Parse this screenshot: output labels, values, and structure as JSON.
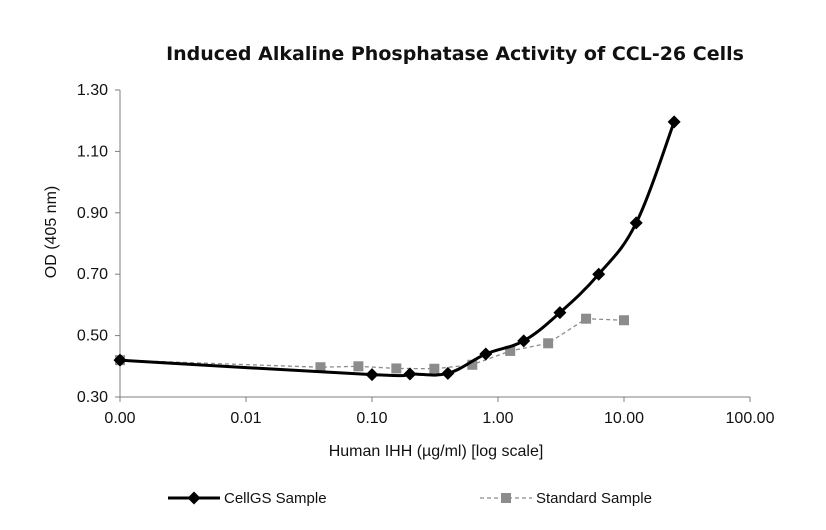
{
  "chart_data": {
    "type": "line",
    "title": "Induced Alkaline Phosphatase Activity of CCL-26 Cells",
    "xlabel": "Human IHH (µg/ml) [log scale]",
    "ylabel": "OD (405 nm)",
    "x_scale": "log",
    "x_ticks": [
      "0.00",
      "0.01",
      "0.10",
      "1.00",
      "10.00",
      "100.00"
    ],
    "x_tick_values": [
      0.001,
      0.01,
      0.1,
      1,
      10,
      100
    ],
    "y_ticks": [
      "0.30",
      "0.50",
      "0.70",
      "0.90",
      "1.10",
      "1.30"
    ],
    "y_tick_values": [
      0.3,
      0.5,
      0.7,
      0.9,
      1.1,
      1.3
    ],
    "xlim": [
      0.001,
      100
    ],
    "ylim": [
      0.3,
      1.3
    ],
    "grid": false,
    "legend_position": "bottom",
    "series": [
      {
        "name": "CellGS Sample",
        "color": "#000000",
        "marker": "diamond",
        "line_style": "solid",
        "smooth": true,
        "x": [
          0.001,
          0.1,
          0.2,
          0.4,
          0.8,
          1.6,
          3.1,
          6.3,
          12.5,
          25
        ],
        "y": [
          0.42,
          0.373,
          0.375,
          0.377,
          0.44,
          0.483,
          0.575,
          0.7,
          0.867,
          1.196
        ]
      },
      {
        "name": "Standard Sample",
        "color": "#8c8c8c",
        "marker": "square",
        "line_style": "dashed",
        "smooth": false,
        "x": [
          0.001,
          0.039,
          0.078,
          0.156,
          0.3125,
          0.625,
          1.25,
          2.5,
          5,
          10
        ],
        "y": [
          0.42,
          0.397,
          0.4,
          0.393,
          0.392,
          0.405,
          0.45,
          0.475,
          0.555,
          0.55
        ]
      }
    ]
  }
}
